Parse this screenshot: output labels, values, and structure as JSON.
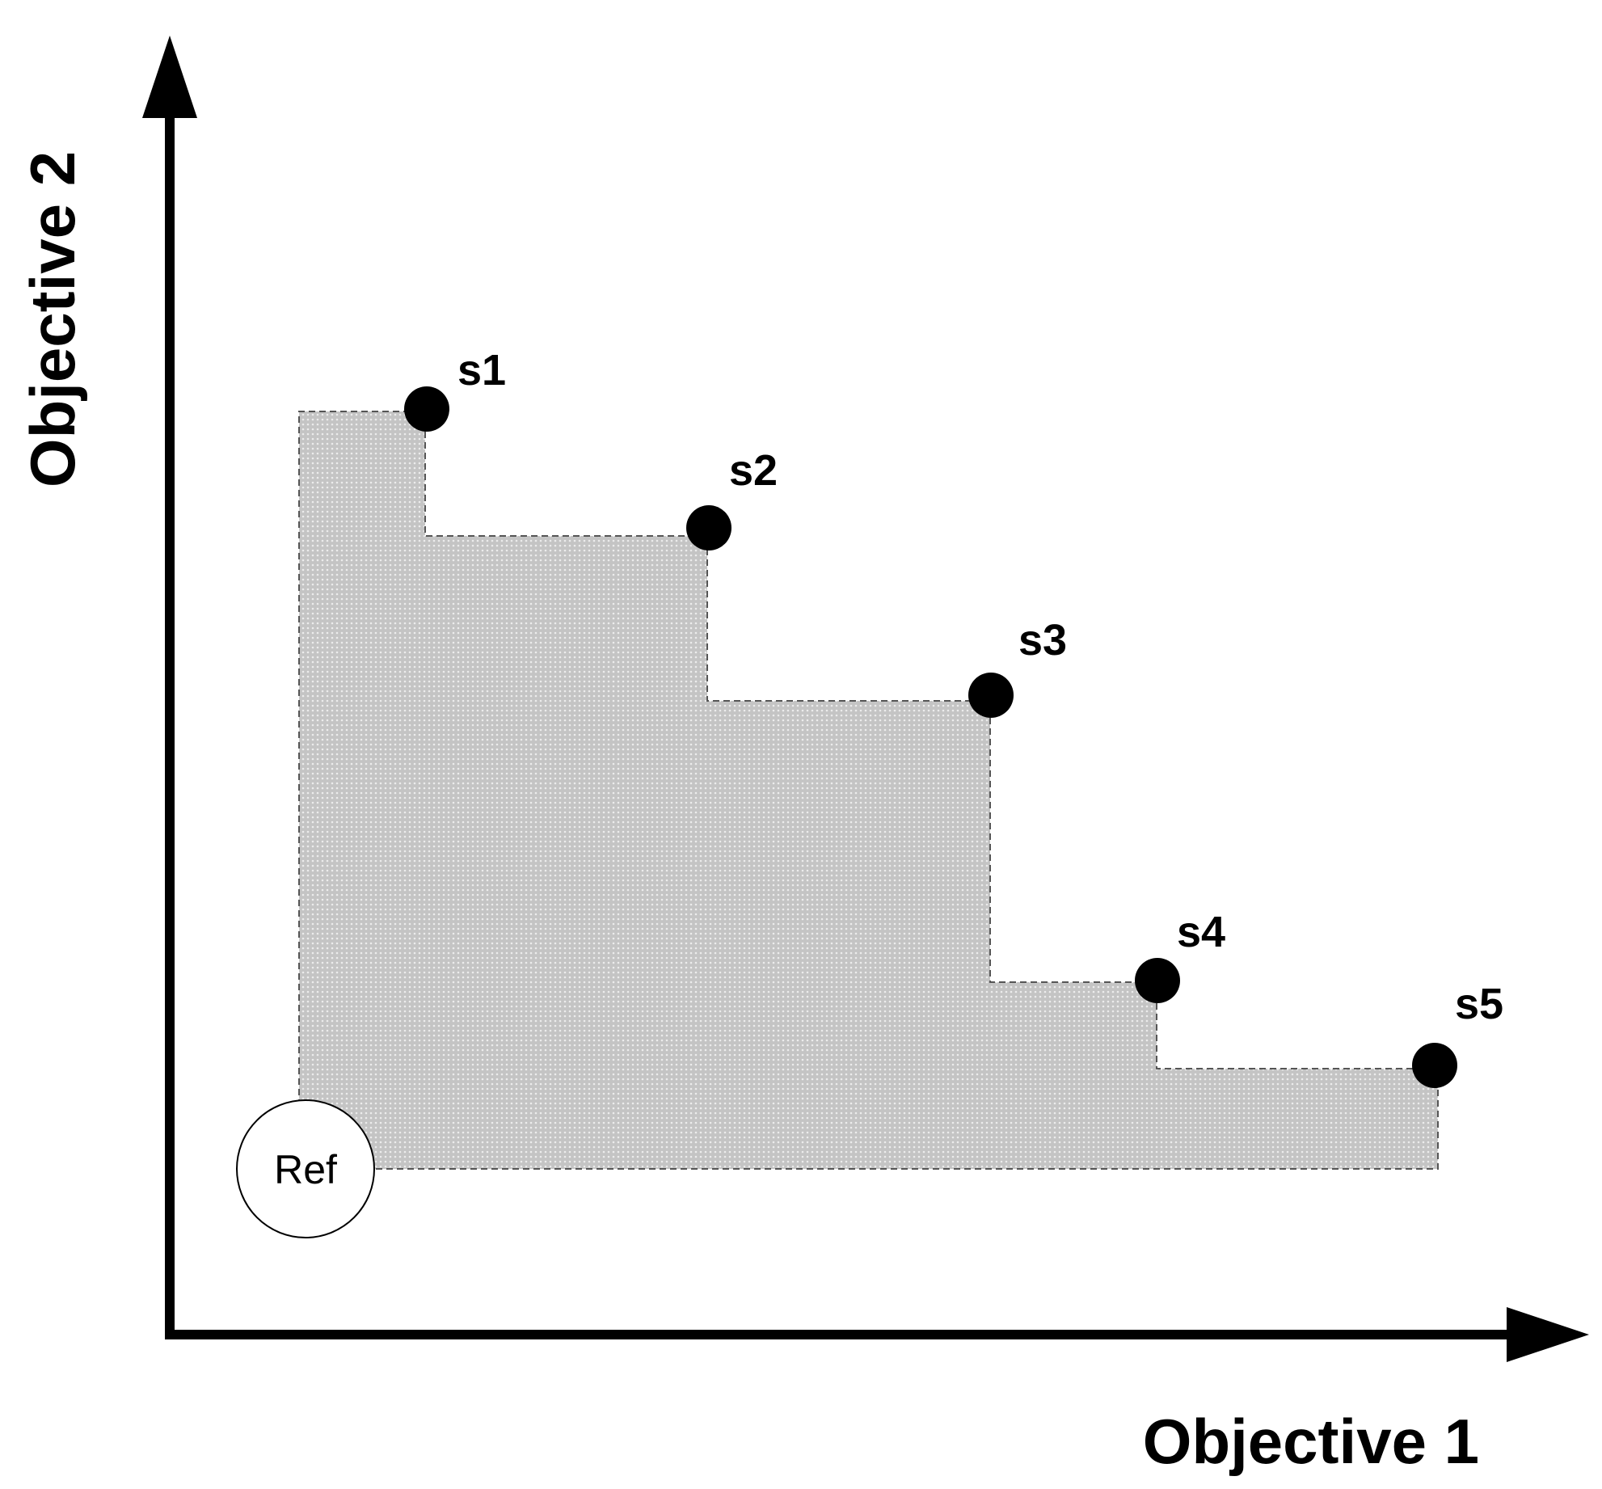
{
  "diagram": {
    "x_axis_label": "Objective 1",
    "y_axis_label": "Objective 2",
    "reference_point": {
      "label": "Ref"
    },
    "solutions": [
      {
        "label": "s1"
      },
      {
        "label": "s2"
      },
      {
        "label": "s3"
      },
      {
        "label": "s4"
      },
      {
        "label": "s5"
      }
    ],
    "colors": {
      "axis": "#000000",
      "point": "#000000",
      "region_fill": "#cfcfcf",
      "region_border": "#555555",
      "ref_fill": "#ffffff"
    }
  }
}
